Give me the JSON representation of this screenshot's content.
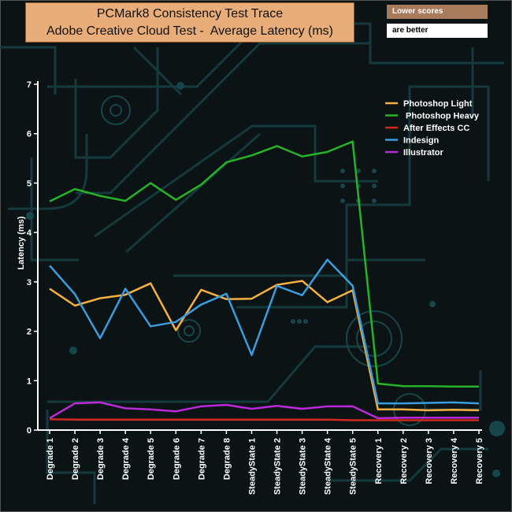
{
  "header": {
    "title_line1": "PCMark8 Consistency Test Trace",
    "title_line2": "Adobe Creative Cloud Test -  Average Latency (ms)",
    "note_line1": "Lower scores",
    "note_line2": "are better"
  },
  "colors": {
    "background": "#0c1314",
    "circuit": "#143a3c",
    "axis": "#ffffff",
    "title_box": "#e8ad78"
  },
  "chart_data": {
    "type": "line",
    "title": "PCMark8 Consistency Test Trace Adobe Creative Cloud Test -  Average Latency (ms)",
    "xlabel": "",
    "ylabel": "Latency (ms)",
    "ylim": [
      0,
      7
    ],
    "yticks": [
      0,
      1,
      2,
      3,
      4,
      5,
      6,
      7
    ],
    "legend_position": "top-right",
    "categories": [
      "Degrade 1",
      "Degrade 2",
      "Degrade 3",
      "Degrade 4",
      "Degrade 5",
      "Degrade 6",
      "Degrade 7",
      "Degrade 8",
      "SteadyState 1",
      "SteadyState 2",
      "SteadyState 3",
      "SteadyState 4",
      "SteadyState 5",
      "Recovery 1",
      "Recovery 2",
      "Recovery 3",
      "Recovery 4",
      "Recovery 5"
    ],
    "series": [
      {
        "name": "Photoshop Light",
        "legend_label": "Photoshop Light",
        "color": "#f5b041",
        "values": [
          2.86,
          2.52,
          2.67,
          2.74,
          2.97,
          2.02,
          2.84,
          2.65,
          2.66,
          2.94,
          3.02,
          2.59,
          2.83,
          0.42,
          0.42,
          0.4,
          0.41,
          0.4
        ]
      },
      {
        "name": "Photoshop Heavy",
        "legend_label": " Photoshop Heavy",
        "color": "#27b327",
        "values": [
          4.63,
          4.88,
          4.74,
          4.64,
          5.0,
          4.66,
          4.97,
          5.42,
          5.56,
          5.75,
          5.54,
          5.63,
          5.84,
          0.94,
          0.89,
          0.89,
          0.88,
          0.88
        ]
      },
      {
        "name": "After Effects CC",
        "legend_label": "After Effects CC",
        "color": "#cc2a1e",
        "values": [
          0.22,
          0.21,
          0.21,
          0.21,
          0.21,
          0.21,
          0.21,
          0.21,
          0.21,
          0.21,
          0.21,
          0.21,
          0.2,
          0.2,
          0.2,
          0.2,
          0.2,
          0.2
        ]
      },
      {
        "name": "Indesign",
        "legend_label": "Indesign",
        "color": "#3a9de0",
        "values": [
          3.33,
          2.75,
          1.86,
          2.86,
          2.1,
          2.19,
          2.54,
          2.76,
          1.52,
          2.92,
          2.73,
          3.45,
          2.92,
          0.54,
          0.54,
          0.55,
          0.56,
          0.54
        ]
      },
      {
        "name": "Illustrator",
        "legend_label": "Illustrator",
        "color": "#bb2ad8",
        "values": [
          0.24,
          0.54,
          0.56,
          0.44,
          0.42,
          0.38,
          0.48,
          0.51,
          0.43,
          0.49,
          0.43,
          0.48,
          0.48,
          0.24,
          0.25,
          0.25,
          0.25,
          0.25
        ]
      }
    ]
  }
}
